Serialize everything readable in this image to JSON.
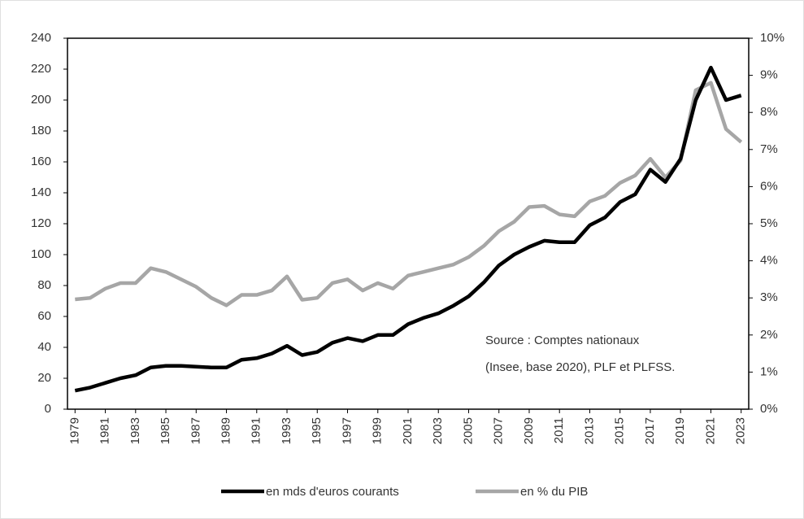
{
  "chart_data": {
    "type": "line",
    "x": [
      1979,
      1980,
      1981,
      1982,
      1983,
      1984,
      1985,
      1986,
      1987,
      1988,
      1989,
      1990,
      1991,
      1992,
      1993,
      1994,
      1995,
      1996,
      1997,
      1998,
      1999,
      2000,
      2001,
      2002,
      2003,
      2004,
      2005,
      2006,
      2007,
      2008,
      2009,
      2010,
      2011,
      2012,
      2013,
      2014,
      2015,
      2016,
      2017,
      2018,
      2019,
      2020,
      2021,
      2022,
      2023
    ],
    "series": [
      {
        "name": "en mds d'euros courants",
        "color": "#000000",
        "values": [
          12,
          14,
          17,
          20,
          22,
          27,
          28,
          28,
          27.5,
          27,
          27,
          32,
          33,
          36,
          41,
          35,
          37,
          43,
          46,
          44,
          48,
          48,
          55,
          59,
          62,
          67,
          73,
          82,
          93,
          100,
          105,
          109,
          108,
          108,
          119,
          124,
          134,
          139,
          155,
          147,
          162,
          200,
          221,
          200,
          203
        ]
      },
      {
        "name": "en % du PIB",
        "color": "#a6a6a6",
        "axis": "y2",
        "values": [
          2.96,
          3.0,
          3.25,
          3.4,
          3.4,
          3.8,
          3.7,
          3.5,
          3.3,
          3.0,
          2.8,
          3.08,
          3.08,
          3.2,
          3.58,
          2.95,
          3.0,
          3.4,
          3.5,
          3.2,
          3.4,
          3.25,
          3.6,
          3.7,
          3.8,
          3.9,
          4.1,
          4.4,
          4.8,
          5.05,
          5.45,
          5.48,
          5.25,
          5.2,
          5.6,
          5.75,
          6.1,
          6.3,
          6.75,
          6.25,
          6.7,
          8.6,
          8.8,
          7.55,
          7.2
        ]
      }
    ],
    "xlim": [
      1978.5,
      2023.5
    ],
    "xticks": [
      1979,
      1981,
      1983,
      1985,
      1987,
      1989,
      1991,
      1993,
      1995,
      1997,
      1999,
      2001,
      2003,
      2005,
      2007,
      2009,
      2011,
      2013,
      2015,
      2017,
      2019,
      2021,
      2023
    ],
    "ylim": [
      0,
      240
    ],
    "yticks": [
      0,
      20,
      40,
      60,
      80,
      100,
      120,
      140,
      160,
      180,
      200,
      220,
      240
    ],
    "y2lim": [
      0,
      10
    ],
    "y2ticks": [
      {
        "value": 0,
        "label": "0%"
      },
      {
        "value": 1,
        "label": "1%"
      },
      {
        "value": 2,
        "label": "2%"
      },
      {
        "value": 3,
        "label": "3%"
      },
      {
        "value": 4,
        "label": "4%"
      },
      {
        "value": 5,
        "label": "5%"
      },
      {
        "value": 6,
        "label": "6%"
      },
      {
        "value": 7,
        "label": "7%"
      },
      {
        "value": 8,
        "label": "8%"
      },
      {
        "value": 9,
        "label": "9%"
      },
      {
        "value": 10,
        "label": "10%"
      }
    ],
    "annotations": [
      "Source : Comptes nationaux",
      "(Insee, base 2020), PLF et PLFSS."
    ],
    "legend": "bottom"
  }
}
